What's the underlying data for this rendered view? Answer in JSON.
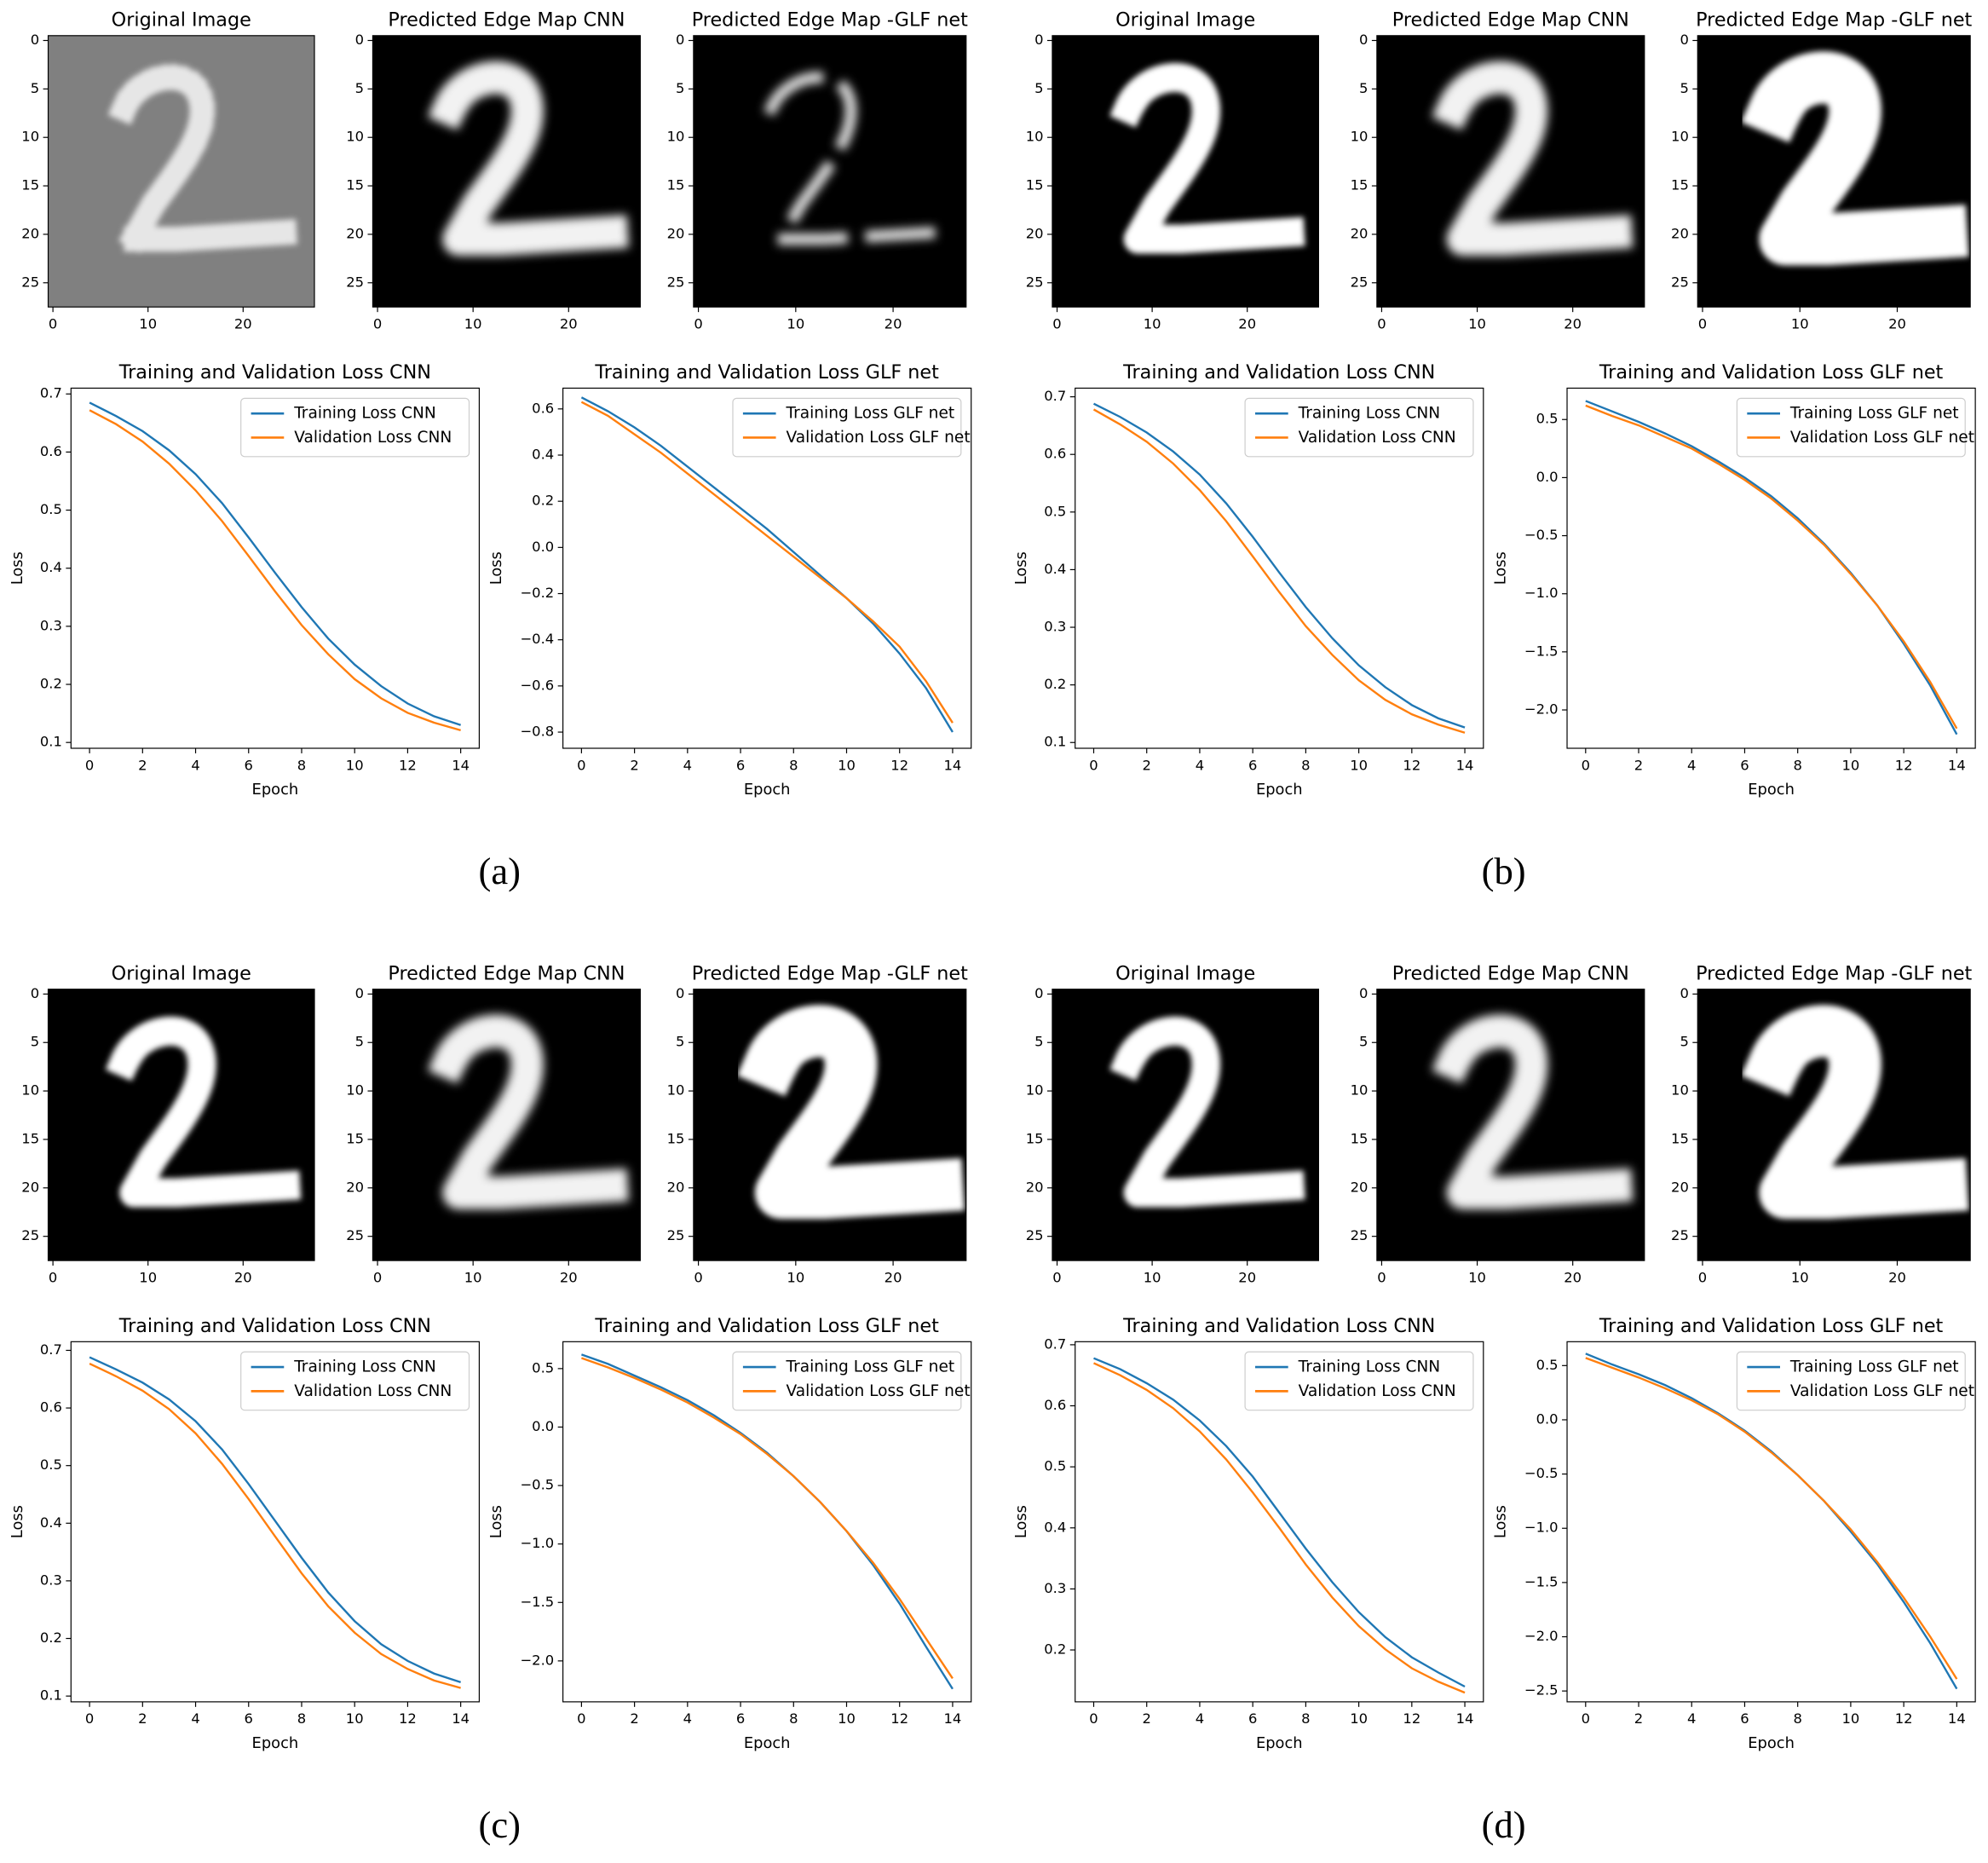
{
  "chart_data": [
    {
      "type": "image",
      "title": "Original Image",
      "xlim": [
        -0.5,
        27.5
      ],
      "ylim": [
        27.5,
        -0.5
      ],
      "xticks": [
        0,
        10,
        20
      ],
      "yticks": [
        0,
        5,
        10,
        15,
        20,
        25
      ],
      "background": "#808080"
    },
    {
      "type": "image",
      "title": "Predicted Edge Map CNN",
      "xlim": [
        -0.5,
        27.5
      ],
      "ylim": [
        27.5,
        -0.5
      ],
      "xticks": [
        0,
        10,
        20
      ],
      "yticks": [
        0,
        5,
        10,
        15,
        20,
        25
      ],
      "background": "#000000"
    },
    {
      "type": "image",
      "title": "Predicted Edge Map -GLF net",
      "xlim": [
        -0.5,
        27.5
      ],
      "ylim": [
        27.5,
        -0.5
      ],
      "xticks": [
        0,
        10,
        20
      ],
      "yticks": [
        0,
        5,
        10,
        15,
        20,
        25
      ],
      "background": "#000000"
    },
    {
      "type": "line",
      "title": "Training and Validation Loss CNN",
      "xlabel": "Epoch",
      "ylabel": "Loss",
      "legend": "upper right",
      "x": [
        0,
        1,
        2,
        3,
        4,
        5,
        6,
        7,
        8,
        9,
        10,
        11,
        12,
        13,
        14
      ],
      "xlim": [
        -0.7,
        14.7
      ],
      "xticks": [
        0,
        2,
        4,
        6,
        8,
        10,
        12,
        14
      ],
      "ylim": [
        0.09,
        0.71
      ],
      "yticks": [
        0.1,
        0.2,
        0.3,
        0.4,
        0.5,
        0.6,
        0.7
      ],
      "series": [
        {
          "name": "Training Loss CNN",
          "color": "#1f77b4",
          "values": [
            0.685,
            0.662,
            0.636,
            0.603,
            0.562,
            0.512,
            0.453,
            0.392,
            0.333,
            0.279,
            0.234,
            0.197,
            0.167,
            0.145,
            0.13
          ]
        },
        {
          "name": "Validation Loss  CNN",
          "color": "#ff7f0e",
          "values": [
            0.672,
            0.648,
            0.618,
            0.58,
            0.534,
            0.481,
            0.421,
            0.36,
            0.302,
            0.252,
            0.209,
            0.176,
            0.151,
            0.134,
            0.121
          ]
        }
      ]
    },
    {
      "type": "line",
      "title": "Training and Validation Loss GLF net",
      "xlabel": "Epoch",
      "ylabel": "Loss",
      "legend": "upper right",
      "x": [
        0,
        1,
        2,
        3,
        4,
        5,
        6,
        7,
        8,
        9,
        10,
        11,
        12,
        13,
        14
      ],
      "xlim": [
        -0.7,
        14.7
      ],
      "xticks": [
        0,
        2,
        4,
        6,
        8,
        10,
        12,
        14
      ],
      "ylim": [
        -0.87,
        0.69
      ],
      "yticks": [
        {
          "value": -0.8,
          "label": "−0.8"
        },
        {
          "value": -0.6,
          "label": "−0.6"
        },
        {
          "value": -0.4,
          "label": "−0.4"
        },
        {
          "value": -0.2,
          "label": "−0.2"
        },
        {
          "value": 0,
          "label": "0.0"
        },
        0.2,
        0.4,
        0.6
      ],
      "series": [
        {
          "name": "Training Loss GLF net",
          "color": "#1f77b4",
          "values": [
            0.65,
            0.59,
            0.52,
            0.44,
            0.35,
            0.26,
            0.17,
            0.08,
            -0.02,
            -0.12,
            -0.22,
            -0.33,
            -0.46,
            -0.61,
            -0.8
          ]
        },
        {
          "name": "Validation Loss GLF net",
          "color": "#ff7f0e",
          "values": [
            0.63,
            0.57,
            0.49,
            0.41,
            0.32,
            0.23,
            0.14,
            0.05,
            -0.04,
            -0.13,
            -0.22,
            -0.32,
            -0.43,
            -0.58,
            -0.76
          ]
        }
      ]
    },
    {
      "type": "image",
      "title": "Original Image",
      "xlim": [
        -0.5,
        27.5
      ],
      "ylim": [
        27.5,
        -0.5
      ],
      "xticks": [
        0,
        10,
        20
      ],
      "yticks": [
        0,
        5,
        10,
        15,
        20,
        25
      ],
      "background": "#000000"
    },
    {
      "type": "image",
      "title": "Predicted Edge Map CNN",
      "xlim": [
        -0.5,
        27.5
      ],
      "ylim": [
        27.5,
        -0.5
      ],
      "xticks": [
        0,
        10,
        20
      ],
      "yticks": [
        0,
        5,
        10,
        15,
        20,
        25
      ],
      "background": "#000000"
    },
    {
      "type": "image",
      "title": "Predicted Edge Map -GLF net",
      "xlim": [
        -0.5,
        27.5
      ],
      "ylim": [
        27.5,
        -0.5
      ],
      "xticks": [
        0,
        10,
        20
      ],
      "yticks": [
        0,
        5,
        10,
        15,
        20,
        25
      ],
      "background": "#000000"
    },
    {
      "type": "line",
      "title": "Training and Validation Loss CNN",
      "xlabel": "Epoch",
      "ylabel": "Loss",
      "legend": "upper right",
      "x": [
        0,
        1,
        2,
        3,
        4,
        5,
        6,
        7,
        8,
        9,
        10,
        11,
        12,
        13,
        14
      ],
      "xlim": [
        -0.7,
        14.7
      ],
      "xticks": [
        0,
        2,
        4,
        6,
        8,
        10,
        12,
        14
      ],
      "ylim": [
        0.09,
        0.715
      ],
      "yticks": [
        0.1,
        0.2,
        0.3,
        0.4,
        0.5,
        0.6,
        0.7
      ],
      "series": [
        {
          "name": "Training Loss CNN",
          "color": "#1f77b4",
          "values": [
            0.688,
            0.665,
            0.638,
            0.605,
            0.565,
            0.515,
            0.457,
            0.395,
            0.335,
            0.281,
            0.234,
            0.196,
            0.165,
            0.142,
            0.126
          ]
        },
        {
          "name": "Validation Loss  CNN",
          "color": "#ff7f0e",
          "values": [
            0.678,
            0.652,
            0.622,
            0.584,
            0.538,
            0.484,
            0.423,
            0.361,
            0.302,
            0.252,
            0.208,
            0.174,
            0.149,
            0.131,
            0.117
          ]
        }
      ]
    },
    {
      "type": "line",
      "title": "Training and Validation Loss GLF net",
      "xlabel": "Epoch",
      "ylabel": "Loss",
      "legend": "upper right",
      "x": [
        0,
        1,
        2,
        3,
        4,
        5,
        6,
        7,
        8,
        9,
        10,
        11,
        12,
        13,
        14
      ],
      "xlim": [
        -0.7,
        14.7
      ],
      "xticks": [
        0,
        2,
        4,
        6,
        8,
        10,
        12,
        14
      ],
      "ylim": [
        -2.33,
        0.77
      ],
      "yticks": [
        {
          "value": -2,
          "label": "−2.0"
        },
        {
          "value": -1.5,
          "label": "−1.5"
        },
        {
          "value": -1,
          "label": "−1.0"
        },
        {
          "value": -0.5,
          "label": "−0.5"
        },
        {
          "value": 0,
          "label": "0.0"
        },
        0.5
      ],
      "series": [
        {
          "name": "Training Loss GLF net",
          "color": "#1f77b4",
          "values": [
            0.66,
            0.57,
            0.48,
            0.38,
            0.27,
            0.14,
            0.0,
            -0.16,
            -0.35,
            -0.57,
            -0.82,
            -1.1,
            -1.43,
            -1.79,
            -2.21
          ]
        },
        {
          "name": "Validation Loss GLF net",
          "color": "#ff7f0e",
          "values": [
            0.62,
            0.53,
            0.45,
            0.35,
            0.25,
            0.12,
            -0.02,
            -0.18,
            -0.37,
            -0.58,
            -0.83,
            -1.1,
            -1.41,
            -1.76,
            -2.16
          ]
        }
      ]
    },
    {
      "type": "image",
      "title": "Original Image",
      "xlim": [
        -0.5,
        27.5
      ],
      "ylim": [
        27.5,
        -0.5
      ],
      "xticks": [
        0,
        10,
        20
      ],
      "yticks": [
        0,
        5,
        10,
        15,
        20,
        25
      ],
      "background": "#000000"
    },
    {
      "type": "image",
      "title": "Predicted Edge Map CNN",
      "xlim": [
        -0.5,
        27.5
      ],
      "ylim": [
        27.5,
        -0.5
      ],
      "xticks": [
        0,
        10,
        20
      ],
      "yticks": [
        0,
        5,
        10,
        15,
        20,
        25
      ],
      "background": "#000000"
    },
    {
      "type": "image",
      "title": "Predicted Edge Map -GLF net",
      "xlim": [
        -0.5,
        27.5
      ],
      "ylim": [
        27.5,
        -0.5
      ],
      "xticks": [
        0,
        10,
        20
      ],
      "yticks": [
        0,
        5,
        10,
        15,
        20,
        25
      ],
      "background": "#000000"
    },
    {
      "type": "line",
      "title": "Training and Validation Loss CNN",
      "xlabel": "Epoch",
      "ylabel": "Loss",
      "legend": "upper right",
      "x": [
        0,
        1,
        2,
        3,
        4,
        5,
        6,
        7,
        8,
        9,
        10,
        11,
        12,
        13,
        14
      ],
      "xlim": [
        -0.7,
        14.7
      ],
      "xticks": [
        0,
        2,
        4,
        6,
        8,
        10,
        12,
        14
      ],
      "ylim": [
        0.09,
        0.715
      ],
      "yticks": [
        0.1,
        0.2,
        0.3,
        0.4,
        0.5,
        0.6,
        0.7
      ],
      "series": [
        {
          "name": "Training Loss CNN",
          "color": "#1f77b4",
          "values": [
            0.688,
            0.667,
            0.644,
            0.615,
            0.577,
            0.528,
            0.468,
            0.404,
            0.34,
            0.28,
            0.23,
            0.19,
            0.161,
            0.139,
            0.124
          ]
        },
        {
          "name": "Validation Loss  CNN",
          "color": "#ff7f0e",
          "values": [
            0.677,
            0.655,
            0.63,
            0.598,
            0.556,
            0.503,
            0.442,
            0.377,
            0.313,
            0.256,
            0.21,
            0.173,
            0.147,
            0.127,
            0.114
          ]
        }
      ]
    },
    {
      "type": "line",
      "title": "Training and Validation Loss GLF net",
      "xlabel": "Epoch",
      "ylabel": "Loss",
      "legend": "upper right",
      "x": [
        0,
        1,
        2,
        3,
        4,
        5,
        6,
        7,
        8,
        9,
        10,
        11,
        12,
        13,
        14
      ],
      "xlim": [
        -0.7,
        14.7
      ],
      "xticks": [
        0,
        2,
        4,
        6,
        8,
        10,
        12,
        14
      ],
      "ylim": [
        -2.35,
        0.73
      ],
      "yticks": [
        {
          "value": -2,
          "label": "−2.0"
        },
        {
          "value": -1.5,
          "label": "−1.5"
        },
        {
          "value": -1,
          "label": "−1.0"
        },
        {
          "value": -0.5,
          "label": "−0.5"
        },
        {
          "value": 0,
          "label": "0.0"
        },
        0.5
      ],
      "series": [
        {
          "name": "Training Loss GLF net",
          "color": "#1f77b4",
          "values": [
            0.62,
            0.54,
            0.44,
            0.34,
            0.23,
            0.1,
            -0.05,
            -0.22,
            -0.42,
            -0.64,
            -0.89,
            -1.18,
            -1.51,
            -1.88,
            -2.24
          ]
        },
        {
          "name": "Validation Loss GLF net",
          "color": "#ff7f0e",
          "values": [
            0.59,
            0.51,
            0.42,
            0.32,
            0.21,
            0.08,
            -0.06,
            -0.23,
            -0.42,
            -0.64,
            -0.89,
            -1.16,
            -1.47,
            -1.81,
            -2.15
          ]
        }
      ]
    },
    {
      "type": "image",
      "title": "Original Image",
      "xlim": [
        -0.5,
        27.5
      ],
      "ylim": [
        27.5,
        -0.5
      ],
      "xticks": [
        0,
        10,
        20
      ],
      "yticks": [
        0,
        5,
        10,
        15,
        20,
        25
      ],
      "background": "#000000"
    },
    {
      "type": "image",
      "title": "Predicted Edge Map CNN",
      "xlim": [
        -0.5,
        27.5
      ],
      "ylim": [
        27.5,
        -0.5
      ],
      "xticks": [
        0,
        10,
        20
      ],
      "yticks": [
        0,
        5,
        10,
        15,
        20,
        25
      ],
      "background": "#000000"
    },
    {
      "type": "image",
      "title": "Predicted Edge Map -GLF net",
      "xlim": [
        -0.5,
        27.5
      ],
      "ylim": [
        27.5,
        -0.5
      ],
      "xticks": [
        0,
        10,
        20
      ],
      "yticks": [
        0,
        5,
        10,
        15,
        20,
        25
      ],
      "background": "#000000"
    },
    {
      "type": "line",
      "title": "Training and Validation Loss CNN",
      "xlabel": "Epoch",
      "ylabel": "Loss",
      "legend": "upper right",
      "x": [
        0,
        1,
        2,
        3,
        4,
        5,
        6,
        7,
        8,
        9,
        10,
        11,
        12,
        13,
        14
      ],
      "xlim": [
        -0.7,
        14.7
      ],
      "xticks": [
        0,
        2,
        4,
        6,
        8,
        10,
        12,
        14
      ],
      "ylim": [
        0.115,
        0.705
      ],
      "yticks": [
        0.2,
        0.3,
        0.4,
        0.5,
        0.6,
        0.7
      ],
      "series": [
        {
          "name": "Training Loss CNN",
          "color": "#1f77b4",
          "values": [
            0.678,
            0.66,
            0.637,
            0.61,
            0.576,
            0.534,
            0.484,
            0.425,
            0.366,
            0.311,
            0.262,
            0.221,
            0.188,
            0.163,
            0.14
          ]
        },
        {
          "name": "Validation Loss  CNN",
          "color": "#ff7f0e",
          "values": [
            0.67,
            0.65,
            0.626,
            0.596,
            0.558,
            0.512,
            0.458,
            0.4,
            0.34,
            0.286,
            0.239,
            0.201,
            0.17,
            0.148,
            0.13
          ]
        }
      ]
    },
    {
      "type": "line",
      "title": "Training and Validation Loss GLF net",
      "xlabel": "Epoch",
      "ylabel": "Loss",
      "legend": "upper right",
      "x": [
        0,
        1,
        2,
        3,
        4,
        5,
        6,
        7,
        8,
        9,
        10,
        11,
        12,
        13,
        14
      ],
      "xlim": [
        -0.7,
        14.7
      ],
      "xticks": [
        0,
        2,
        4,
        6,
        8,
        10,
        12,
        14
      ],
      "ylim": [
        -2.6,
        0.72
      ],
      "yticks": [
        {
          "value": -2.5,
          "label": "−2.5"
        },
        {
          "value": -2,
          "label": "−2.0"
        },
        {
          "value": -1.5,
          "label": "−1.5"
        },
        {
          "value": -1,
          "label": "−1.0"
        },
        {
          "value": -0.5,
          "label": "−0.5"
        },
        {
          "value": 0,
          "label": "0.0"
        },
        0.5
      ],
      "series": [
        {
          "name": "Training Loss GLF net",
          "color": "#1f77b4",
          "values": [
            0.61,
            0.51,
            0.42,
            0.32,
            0.2,
            0.06,
            -0.1,
            -0.29,
            -0.51,
            -0.75,
            -1.03,
            -1.33,
            -1.68,
            -2.06,
            -2.48
          ]
        },
        {
          "name": "Validation Loss GLF net",
          "color": "#ff7f0e",
          "values": [
            0.57,
            0.48,
            0.39,
            0.29,
            0.18,
            0.05,
            -0.11,
            -0.3,
            -0.51,
            -0.75,
            -1.01,
            -1.31,
            -1.64,
            -2.0,
            -2.39
          ]
        }
      ]
    }
  ],
  "panel_labels": [
    "(a)",
    "(b)",
    "(c)",
    "(d)"
  ]
}
